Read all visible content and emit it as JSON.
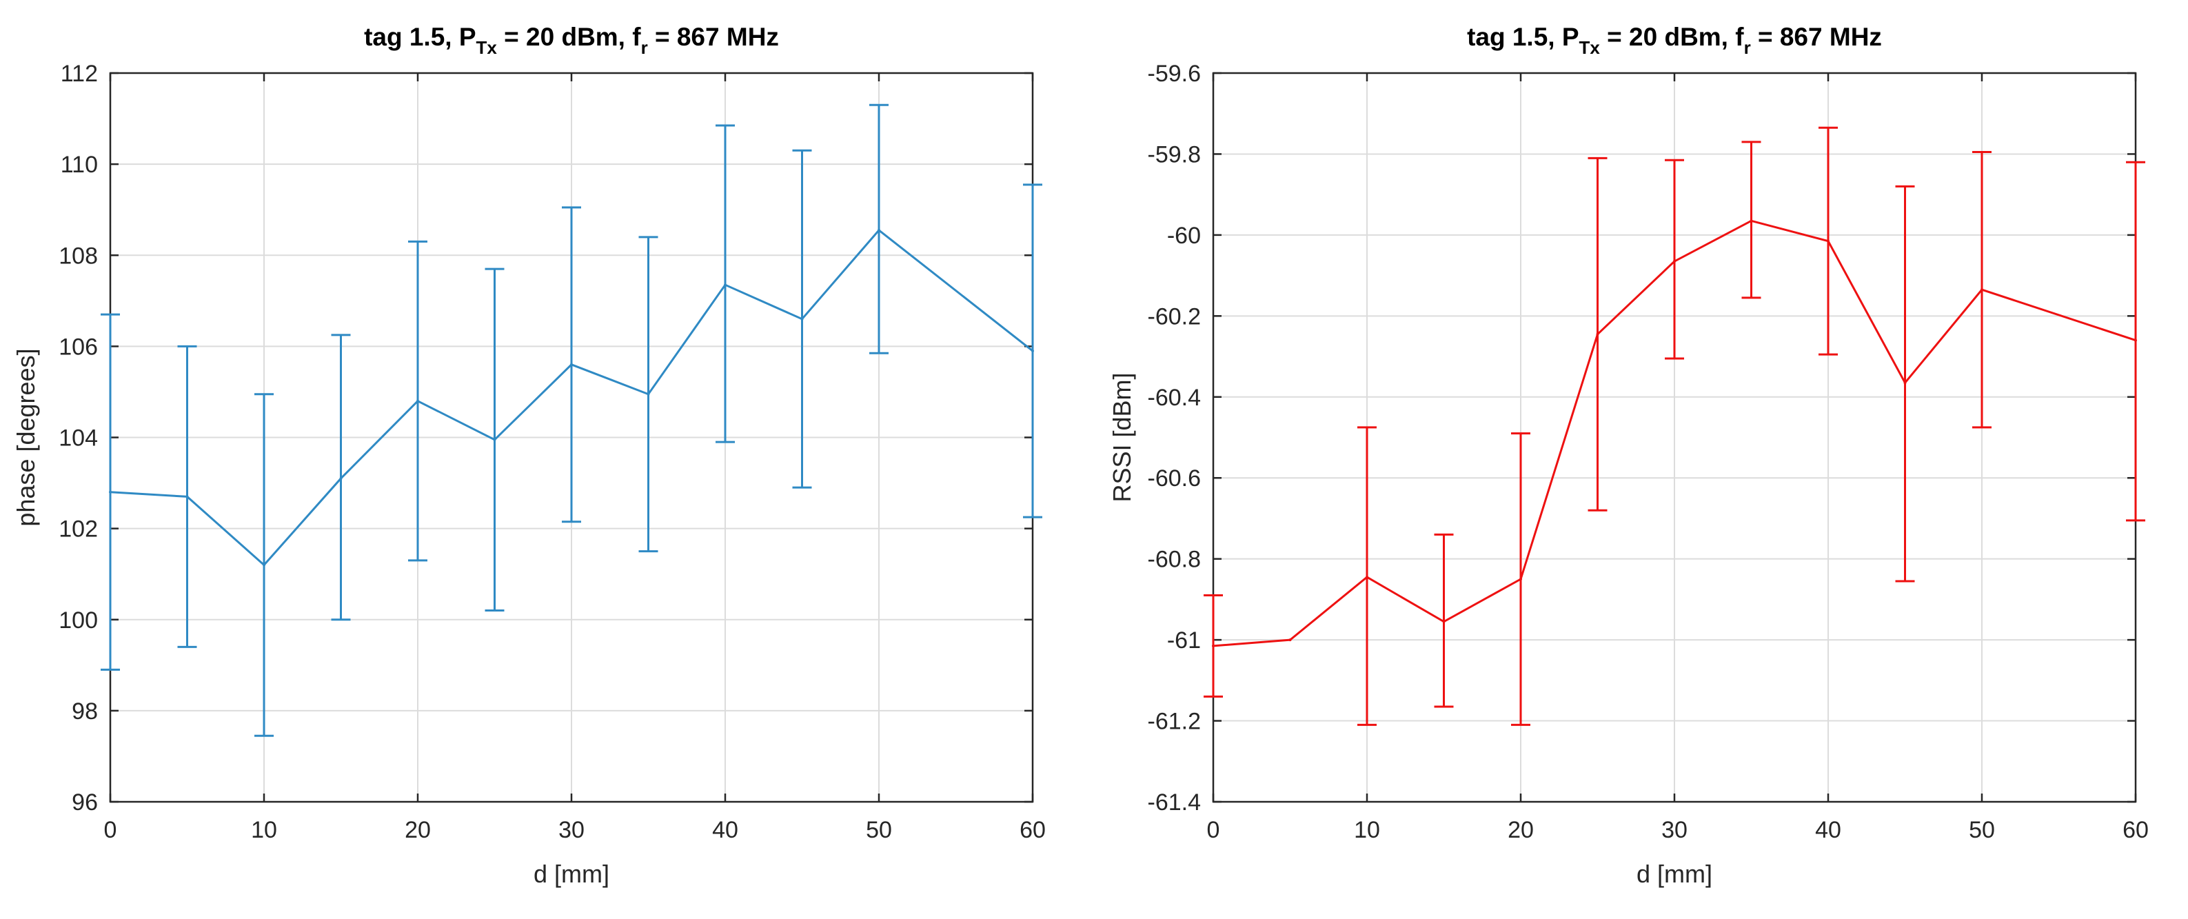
{
  "chart_data": [
    {
      "type": "line",
      "errorbars": true,
      "title": {
        "main": "tag 1.5, P",
        "main_sub": "Tx",
        "mid": " = 20 dBm, f",
        "mid_sub": "r",
        "end": " = 867 MHz"
      },
      "xlabel": "d [mm]",
      "ylabel": "phase [degrees]",
      "xlim": [
        0,
        60
      ],
      "ylim": [
        96,
        112
      ],
      "xticks": [
        0,
        10,
        20,
        30,
        40,
        50,
        60
      ],
      "yticks": [
        96,
        98,
        100,
        102,
        104,
        106,
        108,
        110,
        112
      ],
      "ytick_labels": [
        "96",
        "98",
        "100",
        "102",
        "104",
        "106",
        "108",
        "110",
        "112"
      ],
      "grid": true,
      "color": "#2f8ac4",
      "x": [
        0,
        5,
        10,
        15,
        20,
        25,
        30,
        35,
        40,
        45,
        50,
        60
      ],
      "y": [
        102.8,
        102.7,
        101.2,
        103.1,
        104.8,
        103.95,
        105.6,
        104.95,
        107.35,
        106.6,
        108.55,
        105.9
      ],
      "lower": [
        98.9,
        99.4,
        97.45,
        100.0,
        101.3,
        100.2,
        102.15,
        101.5,
        103.9,
        102.9,
        105.85,
        102.25
      ],
      "upper": [
        106.7,
        106.0,
        104.95,
        106.25,
        108.3,
        107.7,
        109.05,
        108.4,
        110.85,
        110.3,
        111.3,
        109.55
      ]
    },
    {
      "type": "line",
      "errorbars": true,
      "title": {
        "main": "tag 1.5, P",
        "main_sub": "Tx",
        "mid": " = 20 dBm, f",
        "mid_sub": "r",
        "end": " = 867 MHz"
      },
      "xlabel": "d [mm]",
      "ylabel": "RSSI [dBm]",
      "xlim": [
        0,
        60
      ],
      "ylim": [
        -61.4,
        -59.6
      ],
      "xticks": [
        0,
        10,
        20,
        30,
        40,
        50,
        60
      ],
      "yticks": [
        -61.4,
        -61.2,
        -61.0,
        -60.8,
        -60.6,
        -60.4,
        -60.2,
        -60.0,
        -59.8,
        -59.6
      ],
      "ytick_labels": [
        "-61.4",
        "-61.2",
        "-61",
        "-60.8",
        "-60.6",
        "-60.4",
        "-60.2",
        "-60",
        "-59.8",
        "-59.6"
      ],
      "grid": true,
      "color": "#ee1111",
      "x": [
        0,
        5,
        10,
        15,
        20,
        25,
        30,
        35,
        40,
        45,
        50,
        60
      ],
      "y": [
        -61.015,
        -61.0,
        -60.845,
        -60.955,
        -60.85,
        -60.245,
        -60.065,
        -59.965,
        -60.015,
        -60.365,
        -60.135,
        -60.26
      ],
      "lower": [
        -61.14,
        null,
        -61.21,
        -61.165,
        -61.21,
        -60.68,
        -60.305,
        -60.155,
        -60.295,
        -60.855,
        -60.475,
        -60.705
      ],
      "upper": [
        -60.89,
        null,
        -60.475,
        -60.74,
        -60.49,
        -59.81,
        -59.815,
        -59.77,
        -59.735,
        -59.88,
        -59.795,
        -59.82
      ]
    }
  ]
}
